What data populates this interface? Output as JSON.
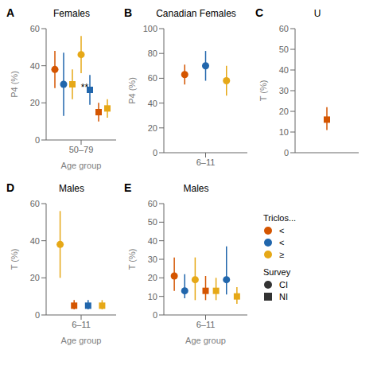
{
  "chart_data": [
    {
      "type": "scatter",
      "panel_label": "A",
      "title": "Females",
      "y_label": "P4 (%)",
      "x_label": "Age group",
      "categories": [
        "50–79"
      ],
      "ylim": [
        0,
        60
      ],
      "yticks": [
        0,
        20,
        40,
        60
      ],
      "annotations": [
        "**"
      ],
      "points": [
        {
          "y": 38,
          "err_low": 10,
          "err_high": 10,
          "color": "#d45500",
          "marker": "circle"
        },
        {
          "y": 30,
          "err_low": 17,
          "err_high": 17,
          "color": "#2166ac",
          "marker": "circle"
        },
        {
          "y": 30,
          "err_low": 8,
          "err_high": 8,
          "color": "#e6a817",
          "marker": "square"
        },
        {
          "y": 46,
          "err_low": 10,
          "err_high": 10,
          "color": "#e6a817",
          "marker": "circle"
        },
        {
          "y": 27,
          "err_low": 8,
          "err_high": 8,
          "color": "#2166ac",
          "marker": "square"
        },
        {
          "y": 15,
          "err_low": 5,
          "err_high": 5,
          "color": "#d45500",
          "marker": "square"
        },
        {
          "y": 17,
          "err_low": 5,
          "err_high": 5,
          "color": "#e6a817",
          "marker": "square"
        }
      ]
    },
    {
      "type": "scatter",
      "panel_label": "B",
      "title": "Canadian Females",
      "y_label": "P4 (%)",
      "categories": [
        "6–11"
      ],
      "ylim": [
        0,
        100
      ],
      "yticks": [
        0,
        20,
        40,
        60,
        80,
        100
      ],
      "points": [
        {
          "y": 63,
          "err_low": 8,
          "err_high": 8,
          "color": "#d45500",
          "marker": "circle"
        },
        {
          "y": 70,
          "err_low": 12,
          "err_high": 12,
          "color": "#2166ac",
          "marker": "circle"
        },
        {
          "y": 58,
          "err_low": 12,
          "err_high": 12,
          "color": "#e6a817",
          "marker": "circle"
        }
      ]
    },
    {
      "type": "scatter",
      "panel_label": "C",
      "title": "U",
      "y_label": "T (%)",
      "tick_labels": "y",
      "ylim": [
        0,
        60
      ],
      "yticks": [
        0,
        10,
        20,
        30,
        40,
        50,
        60
      ],
      "points": [
        {
          "y": 16,
          "err_low": 5,
          "err_high": 6,
          "color": "#d45500",
          "marker": "square"
        }
      ]
    },
    {
      "type": "scatter",
      "panel_label": "D",
      "title": "Males",
      "y_label": "T (%)",
      "x_label": "Age group",
      "categories": [
        "6–11"
      ],
      "ylim": [
        0,
        60
      ],
      "yticks": [
        0,
        20,
        40,
        60
      ],
      "points": [
        {
          "y": 38,
          "err_low": 18,
          "err_high": 18,
          "color": "#e6a817",
          "marker": "circle"
        },
        {
          "y": 5,
          "err_low": 2,
          "err_high": 3,
          "color": "#d45500",
          "marker": "square"
        },
        {
          "y": 5,
          "err_low": 2,
          "err_high": 3,
          "color": "#2166ac",
          "marker": "square"
        },
        {
          "y": 5,
          "err_low": 2,
          "err_high": 3,
          "color": "#e6a817",
          "marker": "square"
        }
      ]
    },
    {
      "type": "scatter",
      "panel_label": "E",
      "title": "Males",
      "y_label": "T (%)",
      "x_label": "Age group",
      "categories": [
        "6–11"
      ],
      "ylim": [
        0,
        60
      ],
      "yticks": [
        0,
        10,
        20,
        30,
        40,
        50,
        60
      ],
      "points": [
        {
          "y": 21,
          "err_low": 8,
          "err_high": 10,
          "color": "#d45500",
          "marker": "circle"
        },
        {
          "y": 13,
          "err_low": 4,
          "err_high": 9,
          "color": "#2166ac",
          "marker": "circle"
        },
        {
          "y": 19,
          "err_low": 11,
          "err_high": 12,
          "color": "#e6a817",
          "marker": "circle"
        },
        {
          "y": 13,
          "err_low": 5,
          "err_high": 8,
          "color": "#d45500",
          "marker": "square"
        },
        {
          "y": 13,
          "err_low": 5,
          "err_high": 7,
          "color": "#e6a817",
          "marker": "square"
        },
        {
          "y": 19,
          "err_low": 8,
          "err_high": 18,
          "color": "#2166ac",
          "marker": "circle"
        },
        {
          "y": 10,
          "err_low": 4,
          "err_high": 5,
          "color": "#e6a817",
          "marker": "square"
        }
      ]
    }
  ],
  "key": [
    {
      "title": "Triclos...",
      "items": [
        {
          "color": "#d45500",
          "marker": "circle",
          "label": "<"
        },
        {
          "color": "#2166ac",
          "marker": "circle",
          "label": "<"
        },
        {
          "color": "#e6a817",
          "marker": "circle",
          "label": "≥"
        }
      ]
    },
    {
      "title": "Survey",
      "items": [
        {
          "color": "#333333",
          "marker": "circle",
          "label": "CI"
        },
        {
          "color": "#333333",
          "marker": "square",
          "label": "NI"
        }
      ]
    }
  ]
}
